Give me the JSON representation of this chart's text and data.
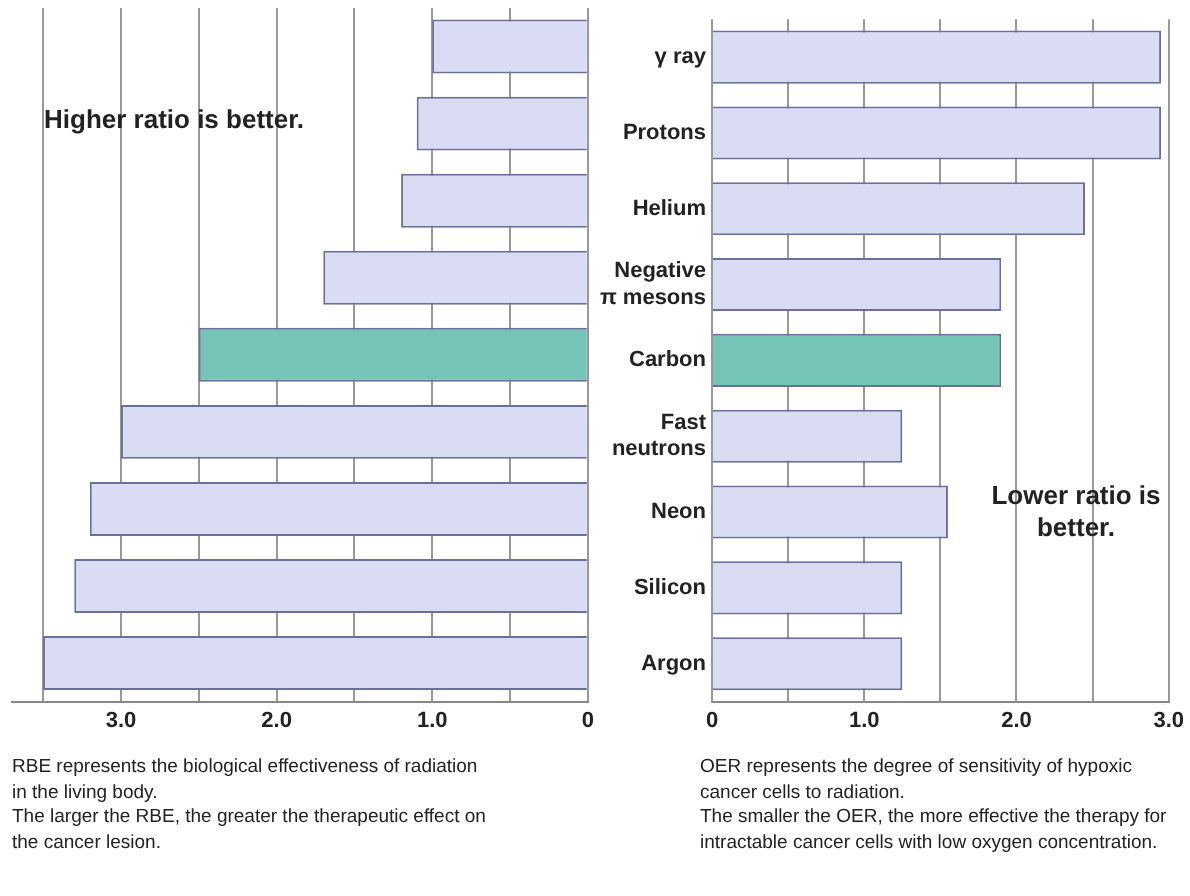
{
  "chart_data": [
    {
      "type": "bar",
      "orientation": "horizontal",
      "categories": [
        null,
        null,
        null,
        null,
        null,
        null,
        null,
        null,
        null
      ],
      "values": [
        1.0,
        1.1,
        1.2,
        1.7,
        2.5,
        3.0,
        3.2,
        3.3,
        3.5
      ],
      "colors": [
        "#d9dcf3",
        "#d9dcf3",
        "#d9dcf3",
        "#d9dcf3",
        "#74c4b8",
        "#d9dcf3",
        "#d9dcf3",
        "#d9dcf3",
        "#d9dcf3"
      ],
      "xlim": [
        3.7,
        0
      ],
      "xticks": [
        {
          "value": 3.5,
          "label": null
        },
        {
          "value": 3,
          "label": "3.0"
        },
        {
          "value": 2.5,
          "label": null
        },
        {
          "value": 2,
          "label": "2.0"
        },
        {
          "value": 1.5,
          "label": null
        },
        {
          "value": 1,
          "label": "1.0"
        },
        {
          "value": 0.5,
          "label": null
        },
        0
      ],
      "grid": "x",
      "tick_labels": "x",
      "annotations": [
        "Higher ratio is better.",
        "RBE represents the biological effectiveness of radiation in the living body.\nThe larger the RBE, the greater the therapeutic effect on the cancer lesion."
      ]
    },
    {
      "type": "bar",
      "orientation": "horizontal",
      "categories": [
        "γ ray",
        "Protons",
        "Helium",
        "Negative π mesons",
        "Carbon",
        "Fast neutrons",
        "Neon",
        "Silicon",
        "Argon"
      ],
      "values": [
        2.95,
        2.95,
        2.45,
        1.9,
        1.9,
        1.25,
        1.55,
        1.25,
        1.25
      ],
      "colors": [
        "#d9dcf3",
        "#d9dcf3",
        "#d9dcf3",
        "#d9dcf3",
        "#74c4b8",
        "#d9dcf3",
        "#d9dcf3",
        "#d9dcf3",
        "#d9dcf3"
      ],
      "xlim": [
        0,
        3
      ],
      "xticks": [
        0,
        {
          "value": 0.5,
          "label": null
        },
        {
          "value": 1,
          "label": "1.0"
        },
        {
          "value": 1.5,
          "label": null
        },
        {
          "value": 2,
          "label": "2.0"
        },
        {
          "value": 2.5,
          "label": null
        },
        {
          "value": 3,
          "label": "3.0"
        }
      ],
      "grid": "x",
      "annotations": [
        "Lower ratio is better.",
        "OER represents the degree of sensitivity of hypoxic cancer cells to radiation.\nThe smaller the OER, the more effective the therapy for intractable cancer cells with low oxygen concentration."
      ]
    }
  ]
}
